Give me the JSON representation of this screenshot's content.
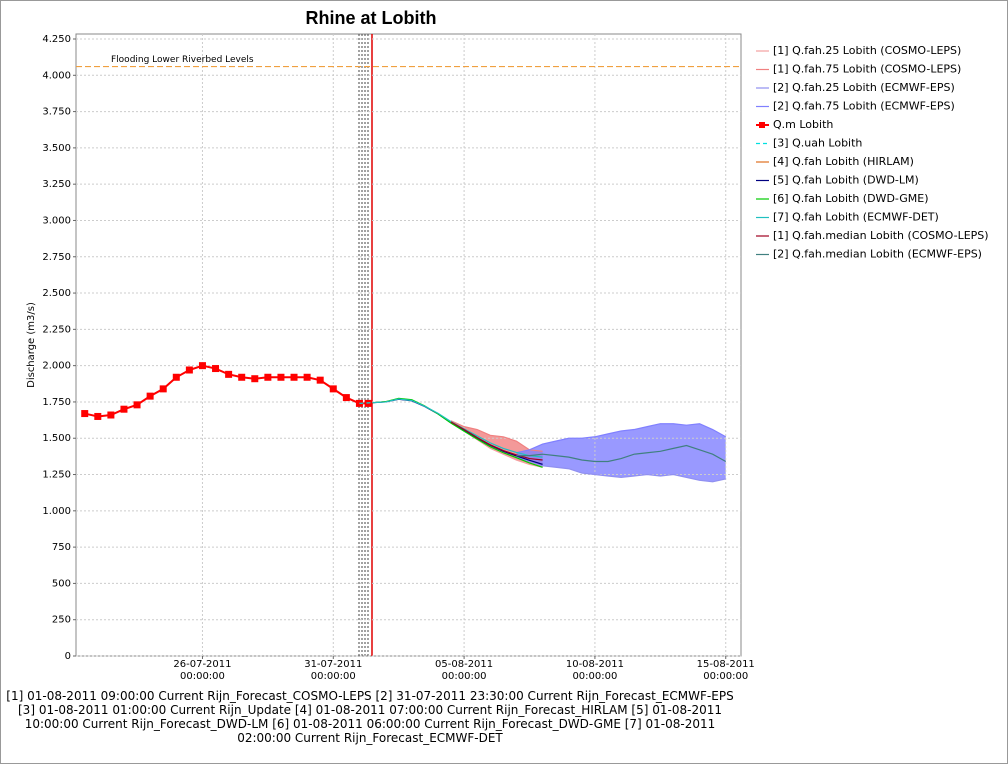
{
  "chart_data": {
    "type": "line",
    "title": "Rhine at Lobith",
    "y_label": "Discharge (m3/s)",
    "xlim": [
      "21-07-2011 04:00:00",
      "15-08-2011 14:00:00"
    ],
    "xticks": [
      "26-07-2011 00:00:00",
      "31-07-2011 00:00:00",
      "05-08-2011 00:00:00",
      "10-08-2011 00:00:00",
      "15-08-2011 00:00:00"
    ],
    "ylim": [
      0,
      4250
    ],
    "yticks": [
      0,
      250,
      500,
      750,
      {
        "value": 1000,
        "label": "1.000"
      },
      {
        "value": 1250,
        "label": "1.250"
      },
      {
        "value": 1500,
        "label": "1.500"
      },
      {
        "value": 1750,
        "label": "1.750"
      },
      {
        "value": 2000,
        "label": "2.000"
      },
      {
        "value": 2250,
        "label": "2.250"
      },
      {
        "value": 2500,
        "label": "2.500"
      },
      {
        "value": 2750,
        "label": "2.750"
      },
      {
        "value": 3000,
        "label": "3.000"
      },
      {
        "value": 3250,
        "label": "3.250"
      },
      {
        "value": 3500,
        "label": "3.500"
      },
      {
        "value": 3750,
        "label": "3.750"
      },
      {
        "value": 4000,
        "label": "4.000"
      },
      {
        "value": 4250,
        "label": "4.250"
      }
    ],
    "grid": true,
    "legend": "right",
    "threshold": {
      "label": "Flooding Lower Riverbed Levels",
      "value": 4060,
      "color": "#f0a040"
    },
    "series": [
      {
        "name": "[1] Q.fah.25 Lobith (COSMO-LEPS)",
        "color": "#f4a0a0",
        "fill": "#f08080",
        "x": [
          "04-08-2011 12:00:00",
          "05-08-2011 00:00:00",
          "05-08-2011 12:00:00",
          "06-08-2011 00:00:00",
          "06-08-2011 12:00:00",
          "07-08-2011 00:00:00",
          "07-08-2011 12:00:00",
          "08-08-2011 00:00:00"
        ],
        "values": [
          1610,
          1550,
          1490,
          1430,
          1390,
          1350,
          1320,
          1300
        ]
      },
      {
        "name": "[1] Q.fah.75 Lobith (COSMO-LEPS)",
        "color": "#f08080",
        "x": [
          "04-08-2011 12:00:00",
          "05-08-2011 00:00:00",
          "05-08-2011 12:00:00",
          "06-08-2011 00:00:00",
          "06-08-2011 12:00:00",
          "07-08-2011 00:00:00",
          "07-08-2011 12:00:00",
          "08-08-2011 00:00:00"
        ],
        "values": [
          1620,
          1580,
          1560,
          1520,
          1510,
          1480,
          1420,
          1410
        ]
      },
      {
        "name": "[2] Q.fah.25 Lobith (ECMWF-EPS)",
        "color": "#9090f0",
        "fill": "#8080ff",
        "x": [
          "07-08-2011 00:00:00",
          "07-08-2011 12:00:00",
          "08-08-2011 00:00:00",
          "08-08-2011 12:00:00",
          "09-08-2011 00:00:00",
          "09-08-2011 12:00:00",
          "10-08-2011 00:00:00",
          "10-08-2011 12:00:00",
          "11-08-2011 00:00:00",
          "11-08-2011 12:00:00",
          "12-08-2011 00:00:00",
          "12-08-2011 12:00:00",
          "13-08-2011 00:00:00",
          "13-08-2011 12:00:00",
          "14-08-2011 00:00:00",
          "14-08-2011 12:00:00",
          "15-08-2011 00:00:00"
        ],
        "values": [
          1370,
          1340,
          1310,
          1300,
          1290,
          1260,
          1250,
          1240,
          1230,
          1240,
          1250,
          1240,
          1250,
          1230,
          1210,
          1200,
          1220
        ]
      },
      {
        "name": "[2] Q.fah.75 Lobith (ECMWF-EPS)",
        "color": "#8080ff",
        "x": [
          "07-08-2011 00:00:00",
          "07-08-2011 12:00:00",
          "08-08-2011 00:00:00",
          "08-08-2011 12:00:00",
          "09-08-2011 00:00:00",
          "09-08-2011 12:00:00",
          "10-08-2011 00:00:00",
          "10-08-2011 12:00:00",
          "11-08-2011 00:00:00",
          "11-08-2011 12:00:00",
          "12-08-2011 00:00:00",
          "12-08-2011 12:00:00",
          "13-08-2011 00:00:00",
          "13-08-2011 12:00:00",
          "14-08-2011 00:00:00",
          "14-08-2011 12:00:00",
          "15-08-2011 00:00:00"
        ],
        "values": [
          1400,
          1420,
          1460,
          1480,
          1500,
          1500,
          1510,
          1530,
          1550,
          1560,
          1580,
          1600,
          1600,
          1590,
          1600,
          1560,
          1510
        ]
      },
      {
        "name": "Q.m Lobith",
        "color": "#ff0000",
        "marker": "square",
        "x": [
          "21-07-2011 12:00:00",
          "22-07-2011 00:00:00",
          "22-07-2011 12:00:00",
          "23-07-2011 00:00:00",
          "23-07-2011 12:00:00",
          "24-07-2011 00:00:00",
          "24-07-2011 12:00:00",
          "25-07-2011 00:00:00",
          "25-07-2011 12:00:00",
          "26-07-2011 00:00:00",
          "26-07-2011 12:00:00",
          "27-07-2011 00:00:00",
          "27-07-2011 12:00:00",
          "28-07-2011 00:00:00",
          "28-07-2011 12:00:00",
          "29-07-2011 00:00:00",
          "29-07-2011 12:00:00",
          "30-07-2011 00:00:00",
          "30-07-2011 12:00:00",
          "31-07-2011 00:00:00",
          "31-07-2011 12:00:00",
          "01-08-2011 00:00:00",
          "01-08-2011 08:00:00"
        ],
        "values": [
          1670,
          1650,
          1660,
          1700,
          1730,
          1790,
          1840,
          1920,
          1970,
          2000,
          1980,
          1940,
          1920,
          1910,
          1920,
          1920,
          1920,
          1920,
          1900,
          1840,
          1780,
          1740,
          1740
        ]
      },
      {
        "name": "[3] Q.uah Lobith",
        "color": "#00e0e0",
        "dash": true,
        "x": [
          "01-08-2011 00:00:00",
          "01-08-2011 12:00:00"
        ],
        "values": [
          1740,
          1745
        ]
      },
      {
        "name": "[4] Q.fah Lobith (HIRLAM)",
        "color": "#e07020",
        "x": [
          "01-08-2011 12:00:00",
          "02-08-2011 00:00:00",
          "02-08-2011 12:00:00",
          "03-08-2011 00:00:00",
          "03-08-2011 12:00:00"
        ],
        "values": [
          1745,
          1752,
          1772,
          1762,
          1722
        ]
      },
      {
        "name": "[5] Q.fah Lobith (DWD-LM)",
        "color": "#000080",
        "x": [
          "01-08-2011 12:00:00",
          "02-08-2011 00:00:00",
          "02-08-2011 12:00:00",
          "03-08-2011 00:00:00",
          "03-08-2011 12:00:00",
          "04-08-2011 00:00:00",
          "04-08-2011 12:00:00",
          "05-08-2011 00:00:00",
          "05-08-2011 12:00:00",
          "06-08-2011 00:00:00",
          "06-08-2011 12:00:00",
          "07-08-2011 00:00:00",
          "07-08-2011 12:00:00",
          "08-08-2011 00:00:00"
        ],
        "values": [
          1745,
          1750,
          1768,
          1758,
          1718,
          1668,
          1606,
          1552,
          1500,
          1452,
          1410,
          1378,
          1348,
          1320
        ]
      },
      {
        "name": "[6] Q.fah Lobith (DWD-GME)",
        "color": "#00cc00",
        "x": [
          "01-08-2011 12:00:00",
          "02-08-2011 00:00:00",
          "02-08-2011 12:00:00",
          "03-08-2011 00:00:00",
          "03-08-2011 12:00:00",
          "04-08-2011 00:00:00",
          "04-08-2011 12:00:00",
          "05-08-2011 00:00:00",
          "05-08-2011 12:00:00",
          "06-08-2011 00:00:00",
          "06-08-2011 12:00:00",
          "07-08-2011 00:00:00",
          "07-08-2011 12:00:00",
          "08-08-2011 00:00:00"
        ],
        "values": [
          1745,
          1752,
          1775,
          1765,
          1722,
          1668,
          1604,
          1548,
          1494,
          1442,
          1400,
          1366,
          1330,
          1300
        ]
      },
      {
        "name": "[7] Q.fah Lobith (ECMWF-DET)",
        "color": "#20c0c0",
        "x": [
          "01-08-2011 12:00:00",
          "02-08-2011 00:00:00",
          "02-08-2011 12:00:00",
          "03-08-2011 00:00:00",
          "03-08-2011 12:00:00",
          "04-08-2011 00:00:00",
          "04-08-2011 12:00:00",
          "05-08-2011 00:00:00",
          "05-08-2011 12:00:00",
          "06-08-2011 00:00:00",
          "06-08-2011 12:00:00",
          "07-08-2011 00:00:00",
          "07-08-2011 12:00:00",
          "08-08-2011 00:00:00"
        ],
        "values": [
          1745,
          1750,
          1770,
          1760,
          1720,
          1672,
          1614,
          1564,
          1516,
          1468,
          1430,
          1402,
          1380,
          1370
        ]
      },
      {
        "name": "[1] Q.fah.median Lobith (COSMO-LEPS)",
        "color": "#a00020",
        "x": [
          "04-08-2011 12:00:00",
          "05-08-2011 00:00:00",
          "05-08-2011 12:00:00",
          "06-08-2011 00:00:00",
          "06-08-2011 12:00:00",
          "07-08-2011 00:00:00",
          "07-08-2011 12:00:00",
          "08-08-2011 00:00:00"
        ],
        "values": [
          1612,
          1560,
          1505,
          1455,
          1415,
          1385,
          1360,
          1350
        ]
      },
      {
        "name": "[2] Q.fah.median Lobith (ECMWF-EPS)",
        "color": "#408080",
        "x": [
          "07-08-2011 00:00:00",
          "07-08-2011 12:00:00",
          "08-08-2011 00:00:00",
          "08-08-2011 12:00:00",
          "09-08-2011 00:00:00",
          "09-08-2011 12:00:00",
          "10-08-2011 00:00:00",
          "10-08-2011 12:00:00",
          "11-08-2011 00:00:00",
          "11-08-2011 12:00:00",
          "12-08-2011 00:00:00",
          "12-08-2011 12:00:00",
          "13-08-2011 00:00:00",
          "13-08-2011 12:00:00",
          "14-08-2011 00:00:00",
          "14-08-2011 12:00:00",
          "15-08-2011 00:00:00"
        ],
        "values": [
          1380,
          1380,
          1390,
          1380,
          1370,
          1350,
          1340,
          1340,
          1360,
          1390,
          1400,
          1410,
          1430,
          1450,
          1420,
          1390,
          1340
        ]
      }
    ],
    "footnote": "[1] 01-08-2011 09:00:00 Current Rijn_Forecast_COSMO-LEPS [2] 31-07-2011 23:30:00 Current Rijn_Forecast_ECMWF-EPS [3] 01-08-2011 01:00:00 Current Rijn_Update [4] 01-08-2011 07:00:00 Current Rijn_Forecast_HIRLAM [5] 01-08-2011 10:00:00 Current Rijn_Forecast_DWD-LM [6] 01-08-2011 06:00:00 Current Rijn_Forecast_DWD-GME [7] 01-08-2011 02:00:00 Current Rijn_Forecast_ECMWF-DET"
  }
}
